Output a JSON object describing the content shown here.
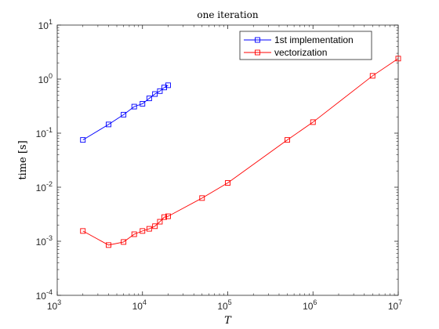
{
  "chart_data": {
    "type": "line",
    "title": "one iteration",
    "xlabel": "T",
    "ylabel": "time [s]",
    "xscale": "log",
    "yscale": "log",
    "xlim": [
      1000,
      10000000
    ],
    "ylim": [
      0.0001,
      10
    ],
    "x_ticks": [
      {
        "value": 1000,
        "base": "10",
        "exp": "3"
      },
      {
        "value": 10000,
        "base": "10",
        "exp": "4"
      },
      {
        "value": 100000,
        "base": "10",
        "exp": "5"
      },
      {
        "value": 1000000,
        "base": "10",
        "exp": "6"
      },
      {
        "value": 10000000,
        "base": "10",
        "exp": "7"
      }
    ],
    "y_ticks": [
      {
        "value": 0.0001,
        "base": "10",
        "exp": "-4"
      },
      {
        "value": 0.001,
        "base": "10",
        "exp": "-3"
      },
      {
        "value": 0.01,
        "base": "10",
        "exp": "-2"
      },
      {
        "value": 0.1,
        "base": "10",
        "exp": "-1"
      },
      {
        "value": 1,
        "base": "10",
        "exp": "0"
      },
      {
        "value": 10,
        "base": "10",
        "exp": "1"
      }
    ],
    "grid": false,
    "legend_position": "top-right",
    "series": [
      {
        "name": "1st implementation",
        "color": "#0000ff",
        "marker": "square",
        "x": [
          2000,
          4000,
          6000,
          8000,
          10000,
          12000,
          14000,
          16000,
          18000,
          20000
        ],
        "y": [
          0.075,
          0.145,
          0.22,
          0.31,
          0.35,
          0.44,
          0.53,
          0.6,
          0.7,
          0.77
        ]
      },
      {
        "name": "vectorization",
        "color": "#ff0000",
        "marker": "square",
        "x": [
          2000,
          4000,
          6000,
          8000,
          10000,
          12000,
          14000,
          16000,
          18000,
          20000,
          50000,
          100000,
          500000,
          1000000,
          5000000,
          10000000
        ],
        "y": [
          0.00155,
          0.00085,
          0.00097,
          0.00135,
          0.00155,
          0.0017,
          0.0019,
          0.0023,
          0.0028,
          0.0029,
          0.0063,
          0.012,
          0.075,
          0.16,
          1.15,
          2.4
        ]
      }
    ]
  }
}
